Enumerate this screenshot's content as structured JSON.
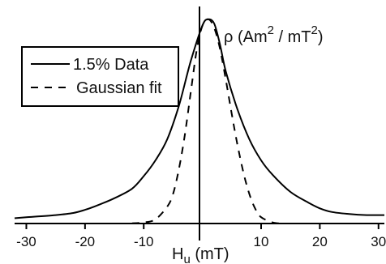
{
  "chart_data": {
    "type": "line",
    "title": "",
    "xlabel": {
      "main": "H",
      "sub": "u",
      "unit": " (mT)"
    },
    "ylabel": {
      "sym": "ρ",
      "open": " (Am",
      "sup1": "2",
      "mid": " / mT",
      "sup2": "2",
      "close": ")"
    },
    "xlim": [
      -32,
      31
    ],
    "ylim": [
      0,
      1.0
    ],
    "xticks": [
      "-30",
      "-20",
      "-10",
      "10",
      "20",
      "30"
    ],
    "xtick_values": [
      -30,
      -20,
      -10,
      10,
      20,
      30
    ],
    "grid": false,
    "legend_position": "top-left",
    "series": [
      {
        "name": "1.5% Data",
        "style": "solid",
        "color": "#000000",
        "x": [
          -32,
          -30,
          -25,
          -22,
          -20,
          -18,
          -15,
          -12,
          -10,
          -8,
          -6,
          -4,
          -2,
          0,
          1,
          2,
          3,
          4,
          6,
          8,
          10,
          12,
          15,
          18,
          20,
          22,
          25,
          28,
          31
        ],
        "y": [
          0.025,
          0.03,
          0.04,
          0.05,
          0.065,
          0.085,
          0.12,
          0.165,
          0.225,
          0.3,
          0.4,
          0.56,
          0.77,
          0.94,
          0.97,
          0.95,
          0.85,
          0.72,
          0.54,
          0.4,
          0.3,
          0.23,
          0.15,
          0.1,
          0.072,
          0.055,
          0.045,
          0.04,
          0.04
        ]
      },
      {
        "name": "Gaussian fit",
        "style": "dashed",
        "color": "#000000",
        "x": [
          -12,
          -10,
          -8,
          -6,
          -5,
          -4,
          -3,
          -2,
          -1,
          0,
          1,
          2,
          3,
          4,
          5,
          6,
          7,
          8,
          9,
          10,
          12,
          14
        ],
        "y": [
          0.001,
          0.005,
          0.02,
          0.08,
          0.14,
          0.26,
          0.42,
          0.62,
          0.82,
          0.94,
          0.97,
          0.93,
          0.83,
          0.68,
          0.52,
          0.37,
          0.24,
          0.14,
          0.07,
          0.03,
          0.005,
          0.0
        ]
      }
    ]
  }
}
